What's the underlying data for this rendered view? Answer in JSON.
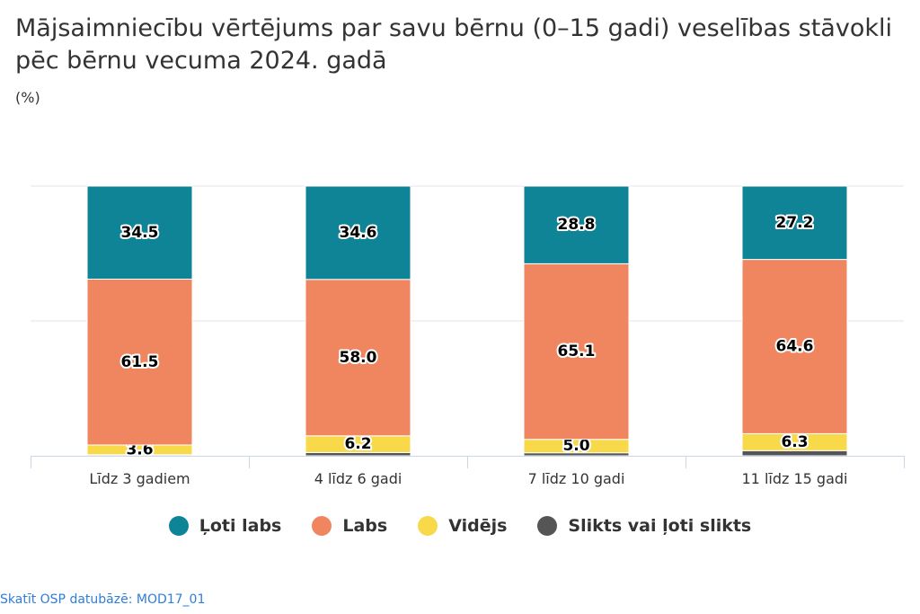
{
  "title": "Mājsaimniecību vērtējums par savu bērnu (0–15 gadi) veselības stāvokli pēc bērnu vecuma 2024. gadā",
  "subtitle": "(%)",
  "source_link": "Skatīt OSP datubāzē: MOD17_01",
  "chart_data": {
    "type": "bar",
    "stacked": true,
    "title": "Mājsaimniecību vērtējums par savu bērnu (0–15 gadi) veselības stāvokli pēc bērnu vecuma 2024. gadā",
    "subtitle": "(%)",
    "xlabel": "",
    "ylabel": "",
    "ylim": [
      0,
      100
    ],
    "grid": true,
    "legend_position": "bottom",
    "categories": [
      "Līdz 3 gadiem",
      "4 līdz 6 gadi",
      "7 līdz 10 gadi",
      "11 līdz 15 gadi"
    ],
    "series": [
      {
        "name": "Ļoti labs",
        "color": "#0f8496",
        "values": [
          34.5,
          34.6,
          28.8,
          27.2
        ],
        "labels": [
          "34.5",
          "34.6",
          "28.8",
          "27.2"
        ]
      },
      {
        "name": "Labs",
        "color": "#ef8660",
        "values": [
          61.5,
          58.0,
          65.1,
          64.6
        ],
        "labels": [
          "61.5",
          "58.0",
          "65.1",
          "64.6"
        ]
      },
      {
        "name": "Vidējs",
        "color": "#f8d94a",
        "values": [
          3.6,
          6.2,
          5.0,
          6.3
        ],
        "labels": [
          "3.6",
          "6.2",
          "5.0",
          "6.3"
        ]
      },
      {
        "name": "Slikts vai ļoti slikts",
        "color": "#555555",
        "values": [
          0.4,
          1.2,
          1.1,
          1.9
        ],
        "labels": [
          "",
          "",
          "",
          ""
        ]
      }
    ]
  }
}
